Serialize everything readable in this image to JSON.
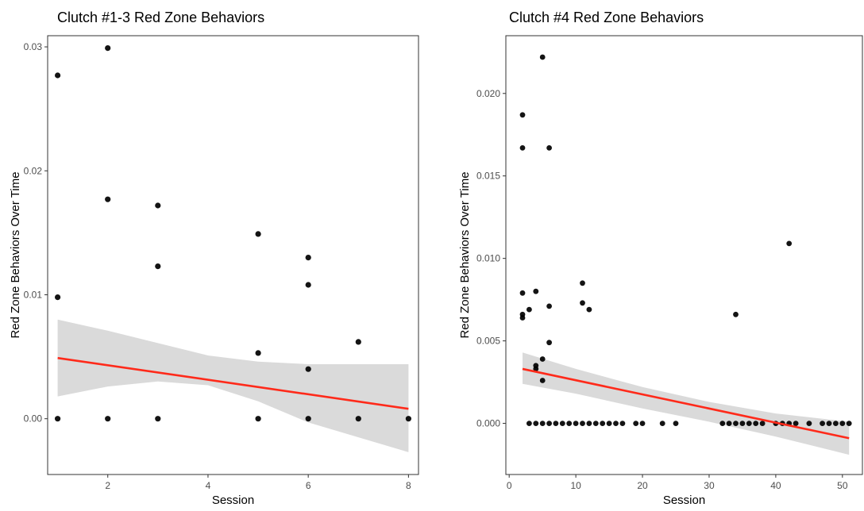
{
  "chart_data": [
    {
      "type": "scatter",
      "title": "Clutch #1-3 Red Zone Behaviors",
      "xlabel": "Session",
      "ylabel": "Red Zone Behaviors Over Time",
      "xlim": [
        0.8,
        8.2
      ],
      "ylim": [
        -0.0045,
        0.0309
      ],
      "xticks": [
        2,
        4,
        6,
        8
      ],
      "yticks": [
        0.0,
        0.01,
        0.02,
        0.03
      ],
      "xtick_labels": [
        "2",
        "4",
        "6",
        "8"
      ],
      "ytick_labels": [
        "0.00",
        "0.01",
        "0.02",
        "0.03"
      ],
      "grid": false,
      "point_color": "#000000",
      "fit_color": "#ff2a1a",
      "band_color": "#d3d3d3",
      "points": [
        {
          "x": 1,
          "y": 0.0277
        },
        {
          "x": 1,
          "y": 0.0098
        },
        {
          "x": 1,
          "y": 0.0
        },
        {
          "x": 2,
          "y": 0.0299
        },
        {
          "x": 2,
          "y": 0.0177
        },
        {
          "x": 2,
          "y": 0.0
        },
        {
          "x": 3,
          "y": 0.0172
        },
        {
          "x": 3,
          "y": 0.0123
        },
        {
          "x": 3,
          "y": 0.0
        },
        {
          "x": 5,
          "y": 0.0149
        },
        {
          "x": 5,
          "y": 0.0053
        },
        {
          "x": 5,
          "y": 0.0
        },
        {
          "x": 6,
          "y": 0.013
        },
        {
          "x": 6,
          "y": 0.0108
        },
        {
          "x": 6,
          "y": 0.004
        },
        {
          "x": 6,
          "y": 0.0
        },
        {
          "x": 7,
          "y": 0.0062
        },
        {
          "x": 7,
          "y": 0.0
        },
        {
          "x": 8,
          "y": 0.0
        }
      ],
      "fit": {
        "x": [
          1,
          8
        ],
        "y": [
          0.0049,
          0.0008
        ]
      },
      "confidence_band": {
        "x": [
          1,
          2,
          3,
          4,
          5,
          6,
          7,
          8
        ],
        "lower": [
          0.0018,
          0.0026,
          0.003,
          0.0027,
          0.0014,
          -0.0003,
          -0.0015,
          -0.0027
        ],
        "upper": [
          0.008,
          0.0071,
          0.0061,
          0.0051,
          0.0046,
          0.0044,
          0.0044,
          0.0044
        ]
      }
    },
    {
      "type": "scatter",
      "title": "Clutch #4 Red Zone Behaviors",
      "xlabel": "Session",
      "ylabel": "Red Zone Behaviors Over Time",
      "xlim": [
        -0.5,
        53
      ],
      "ylim": [
        -0.0031,
        0.0235
      ],
      "xticks": [
        0,
        10,
        20,
        30,
        40,
        50
      ],
      "yticks": [
        0.0,
        0.005,
        0.01,
        0.015,
        0.02
      ],
      "xtick_labels": [
        "0",
        "10",
        "20",
        "30",
        "40",
        "50"
      ],
      "ytick_labels": [
        "0.000",
        "0.005",
        "0.010",
        "0.015",
        "0.020"
      ],
      "grid": false,
      "point_color": "#000000",
      "fit_color": "#ff2a1a",
      "band_color": "#d3d3d3",
      "points": [
        {
          "x": 2,
          "y": 0.0187
        },
        {
          "x": 2,
          "y": 0.0167
        },
        {
          "x": 2,
          "y": 0.0079
        },
        {
          "x": 2,
          "y": 0.0066
        },
        {
          "x": 2,
          "y": 0.0064
        },
        {
          "x": 3,
          "y": 0.0069
        },
        {
          "x": 4,
          "y": 0.008
        },
        {
          "x": 4,
          "y": 0.0035
        },
        {
          "x": 4,
          "y": 0.0033
        },
        {
          "x": 5,
          "y": 0.0222
        },
        {
          "x": 5,
          "y": 0.0039
        },
        {
          "x": 5,
          "y": 0.0026
        },
        {
          "x": 6,
          "y": 0.0167
        },
        {
          "x": 6,
          "y": 0.0071
        },
        {
          "x": 6,
          "y": 0.0049
        },
        {
          "x": 11,
          "y": 0.0085
        },
        {
          "x": 11,
          "y": 0.0073
        },
        {
          "x": 12,
          "y": 0.0069
        },
        {
          "x": 34,
          "y": 0.0066
        },
        {
          "x": 42,
          "y": 0.0109
        },
        {
          "x": 3,
          "y": 0.0
        },
        {
          "x": 4,
          "y": 0.0
        },
        {
          "x": 5,
          "y": 0.0
        },
        {
          "x": 6,
          "y": 0.0
        },
        {
          "x": 7,
          "y": 0.0
        },
        {
          "x": 8,
          "y": 0.0
        },
        {
          "x": 9,
          "y": 0.0
        },
        {
          "x": 10,
          "y": 0.0
        },
        {
          "x": 11,
          "y": 0.0
        },
        {
          "x": 12,
          "y": 0.0
        },
        {
          "x": 13,
          "y": 0.0
        },
        {
          "x": 14,
          "y": 0.0
        },
        {
          "x": 15,
          "y": 0.0
        },
        {
          "x": 16,
          "y": 0.0
        },
        {
          "x": 17,
          "y": 0.0
        },
        {
          "x": 19,
          "y": 0.0
        },
        {
          "x": 20,
          "y": 0.0
        },
        {
          "x": 23,
          "y": 0.0
        },
        {
          "x": 25,
          "y": 0.0
        },
        {
          "x": 32,
          "y": 0.0
        },
        {
          "x": 33,
          "y": 0.0
        },
        {
          "x": 34,
          "y": 0.0
        },
        {
          "x": 35,
          "y": 0.0
        },
        {
          "x": 36,
          "y": 0.0
        },
        {
          "x": 37,
          "y": 0.0
        },
        {
          "x": 38,
          "y": 0.0
        },
        {
          "x": 40,
          "y": 0.0
        },
        {
          "x": 41,
          "y": 0.0
        },
        {
          "x": 42,
          "y": 0.0
        },
        {
          "x": 43,
          "y": 0.0
        },
        {
          "x": 45,
          "y": 0.0
        },
        {
          "x": 47,
          "y": 0.0
        },
        {
          "x": 48,
          "y": 0.0
        },
        {
          "x": 49,
          "y": 0.0
        },
        {
          "x": 50,
          "y": 0.0
        },
        {
          "x": 51,
          "y": 0.0
        }
      ],
      "fit": {
        "x": [
          2,
          51
        ],
        "y": [
          0.0033,
          -0.0009
        ]
      },
      "confidence_band": {
        "x": [
          2,
          10,
          20,
          30,
          40,
          51
        ],
        "lower": [
          0.0024,
          0.0018,
          0.0009,
          0.0001,
          -0.0008,
          -0.0019
        ],
        "upper": [
          0.0043,
          0.0033,
          0.0022,
          0.0013,
          0.0006,
          0.0001
        ]
      }
    }
  ]
}
